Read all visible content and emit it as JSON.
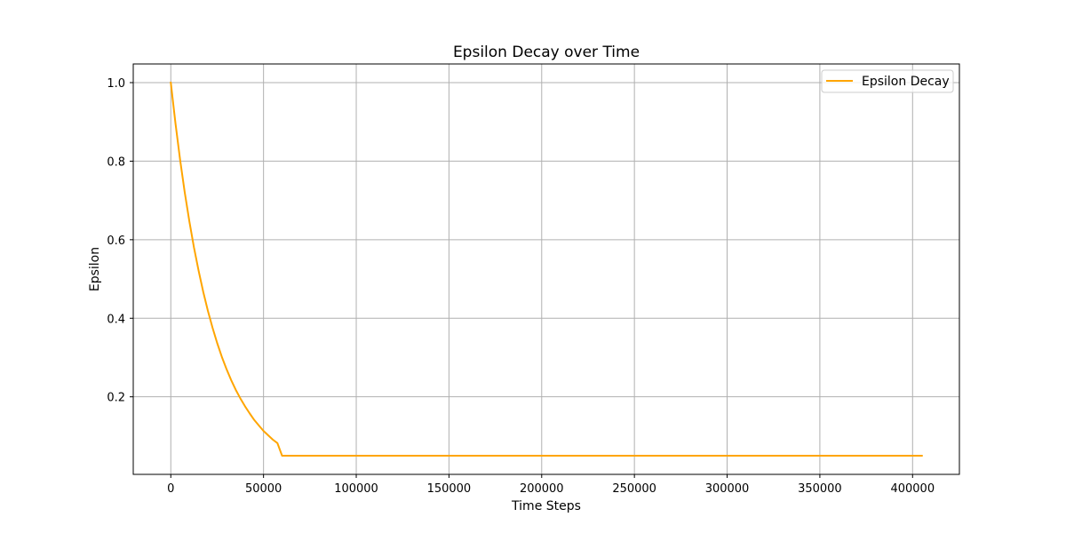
{
  "chart_data": {
    "type": "line",
    "title": "Epsilon Decay over Time",
    "xlabel": "Time Steps",
    "ylabel": "Epsilon",
    "xlim": [
      -20250,
      425250
    ],
    "ylim": [
      0.0025,
      1.0475
    ],
    "xticks": [
      0,
      50000,
      100000,
      150000,
      200000,
      250000,
      300000,
      350000,
      400000
    ],
    "xtick_labels": [
      "0",
      "50000",
      "100000",
      "150000",
      "200000",
      "250000",
      "300000",
      "350000",
      "400000"
    ],
    "yticks": [
      0.2,
      0.4,
      0.6,
      0.8,
      1.0
    ],
    "ytick_labels": [
      "0.2",
      "0.4",
      "0.6",
      "0.8",
      "1.0"
    ],
    "grid": true,
    "legend_position": "upper right",
    "series": [
      {
        "name": "Epsilon Decay",
        "color": "#ffa500",
        "x": [
          0,
          2500,
          5000,
          7500,
          10000,
          12500,
          15000,
          17500,
          20000,
          22500,
          25000,
          27500,
          30000,
          32500,
          35000,
          37500,
          40000,
          42500,
          45000,
          47500,
          50000,
          52500,
          55000,
          57500,
          60000,
          405000
        ],
        "y": [
          1.0,
          0.897,
          0.804,
          0.721,
          0.647,
          0.58,
          0.521,
          0.467,
          0.419,
          0.376,
          0.337,
          0.302,
          0.271,
          0.243,
          0.218,
          0.196,
          0.176,
          0.158,
          0.141,
          0.127,
          0.113,
          0.102,
          0.091,
          0.082,
          0.05,
          0.05
        ]
      }
    ]
  }
}
